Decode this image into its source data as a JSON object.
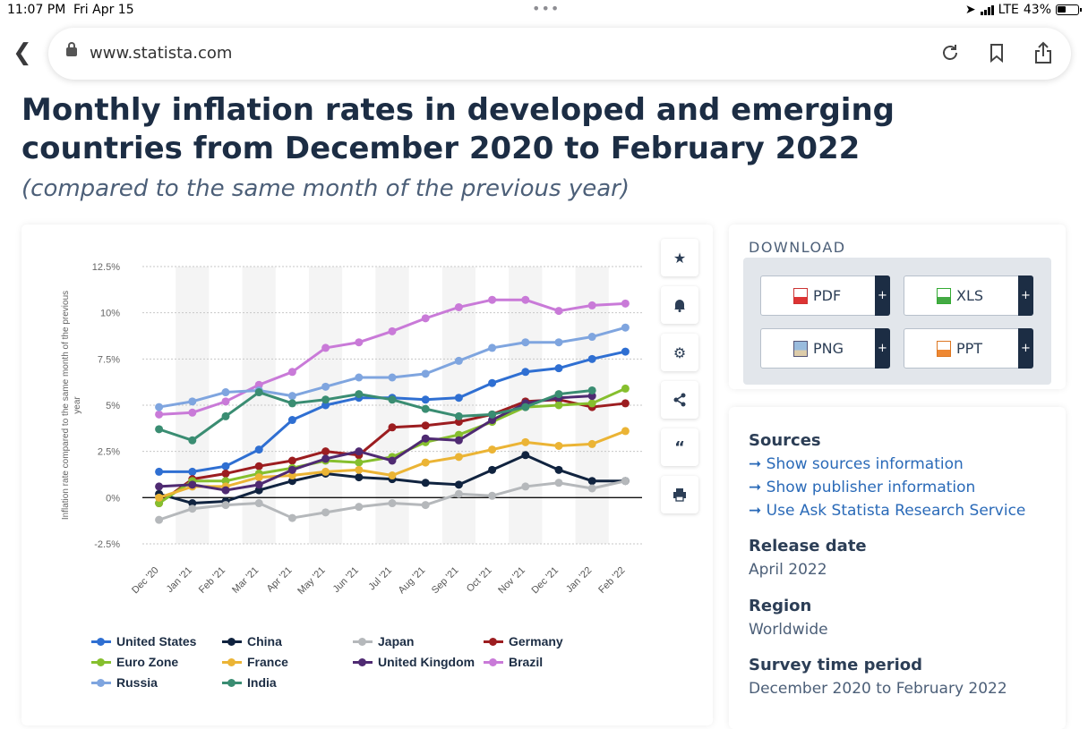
{
  "statusbar": {
    "time": "11:07 PM",
    "date": "Fri Apr 15",
    "network": "LTE",
    "battery": "43%"
  },
  "browser": {
    "url": "www.statista.com"
  },
  "page": {
    "title": "Monthly inflation rates in developed and emerging countries from December 2020 to February 2022",
    "subtitle": "(compared to the same month of the previous year)"
  },
  "chart_tools": [
    "star-icon",
    "bell-icon",
    "gear-icon",
    "share-icon",
    "quote-icon",
    "print-icon"
  ],
  "chart_data": {
    "type": "line",
    "ylabel": "Inflation rate compared to the same month of the previous year",
    "ylim": [
      -2.5,
      12.5
    ],
    "yticks": [
      "-2.5%",
      "0%",
      "2.5%",
      "5%",
      "7.5%",
      "10%",
      "12.5%"
    ],
    "categories": [
      "Dec '20",
      "Jan '21",
      "Feb '21",
      "Mar '21",
      "Apr '21",
      "May '21",
      "Jun '21",
      "Jul '21",
      "Aug '21",
      "Sep '21",
      "Oct '21",
      "Nov '21",
      "Dec '21",
      "Jan '22",
      "Feb '22"
    ],
    "grid": true,
    "legend_position": "bottom",
    "series": [
      {
        "name": "United States",
        "color": "#2f6fd2",
        "values": [
          1.4,
          1.4,
          1.7,
          2.6,
          4.2,
          5.0,
          5.4,
          5.4,
          5.3,
          5.4,
          6.2,
          6.8,
          7.0,
          7.5,
          7.9
        ]
      },
      {
        "name": "China",
        "color": "#10233f",
        "values": [
          0.2,
          -0.3,
          -0.2,
          0.4,
          0.9,
          1.3,
          1.1,
          1.0,
          0.8,
          0.7,
          1.5,
          2.3,
          1.5,
          0.9,
          0.9
        ]
      },
      {
        "name": "Japan",
        "color": "#b5b8bb",
        "values": [
          -1.2,
          -0.6,
          -0.4,
          -0.3,
          -1.1,
          -0.8,
          -0.5,
          -0.3,
          -0.4,
          0.2,
          0.1,
          0.6,
          0.8,
          0.5,
          0.9
        ]
      },
      {
        "name": "Germany",
        "color": "#9c1d20",
        "values": [
          -0.3,
          1.0,
          1.3,
          1.7,
          2.0,
          2.5,
          2.3,
          3.8,
          3.9,
          4.1,
          4.5,
          5.2,
          5.3,
          4.9,
          5.1
        ]
      },
      {
        "name": "Euro Zone",
        "color": "#86bf2e",
        "values": [
          -0.3,
          0.9,
          0.9,
          1.3,
          1.6,
          2.0,
          1.9,
          2.2,
          3.0,
          3.4,
          4.1,
          4.9,
          5.0,
          5.1,
          5.9
        ]
      },
      {
        "name": "France",
        "color": "#ebb435",
        "values": [
          0.0,
          0.6,
          0.6,
          1.1,
          1.2,
          1.4,
          1.5,
          1.2,
          1.9,
          2.2,
          2.6,
          3.0,
          2.8,
          2.9,
          3.6
        ]
      },
      {
        "name": "United Kingdom",
        "color": "#4f2a72",
        "values": [
          0.6,
          0.7,
          0.4,
          0.7,
          1.5,
          2.1,
          2.5,
          2.0,
          3.2,
          3.1,
          4.2,
          5.1,
          5.4,
          5.5,
          null
        ]
      },
      {
        "name": "Brazil",
        "color": "#c97ad8",
        "values": [
          4.5,
          4.6,
          5.2,
          6.1,
          6.8,
          8.1,
          8.4,
          9.0,
          9.7,
          10.3,
          10.7,
          10.7,
          10.1,
          10.4,
          10.5
        ]
      },
      {
        "name": "Russia",
        "color": "#7fa5df",
        "values": [
          4.9,
          5.2,
          5.7,
          5.8,
          5.5,
          6.0,
          6.5,
          6.5,
          6.7,
          7.4,
          8.1,
          8.4,
          8.4,
          8.7,
          9.2
        ]
      },
      {
        "name": "India",
        "color": "#3a8d72",
        "values": [
          3.7,
          3.1,
          4.4,
          5.7,
          5.1,
          5.3,
          5.6,
          5.3,
          4.8,
          4.4,
          4.5,
          4.9,
          5.6,
          5.8,
          null
        ]
      }
    ]
  },
  "download": {
    "heading": "DOWNLOAD",
    "buttons": [
      {
        "label": "PDF",
        "icon": "pdf-file-icon",
        "plus": "+"
      },
      {
        "label": "XLS",
        "icon": "xls-file-icon",
        "plus": "+"
      },
      {
        "label": "PNG",
        "icon": "png-file-icon",
        "plus": "+"
      },
      {
        "label": "PPT",
        "icon": "ppt-file-icon",
        "plus": "+"
      }
    ]
  },
  "info": {
    "sources_heading": "Sources",
    "links": [
      "Show sources information",
      "Show publisher information",
      "Use Ask Statista Research Service"
    ],
    "release_heading": "Release date",
    "release_value": "April 2022",
    "region_heading": "Region",
    "region_value": "Worldwide",
    "survey_heading": "Survey time period",
    "survey_value": "December 2020 to February 2022"
  }
}
